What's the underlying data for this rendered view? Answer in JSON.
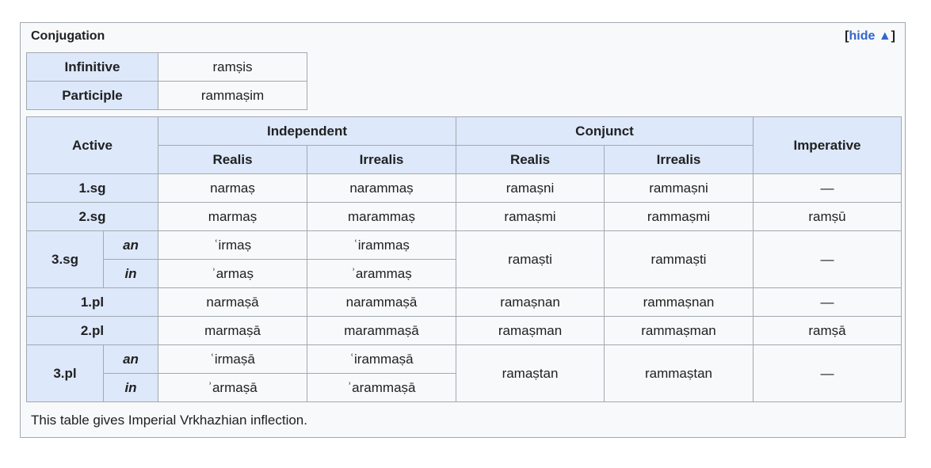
{
  "box": {
    "title": "Conjugation",
    "toggle_open": "[",
    "toggle_label": "hide ▲",
    "toggle_close": "]"
  },
  "forms": [
    {
      "label": "Infinitive",
      "value": "ramṣis"
    },
    {
      "label": "Participle",
      "value": "rammaṣim"
    }
  ],
  "table": {
    "corner": "Active",
    "group_independent": "Independent",
    "group_conjunct": "Conjunct",
    "imperative": "Imperative",
    "realis": "Realis",
    "irrealis": "Irrealis",
    "rows": {
      "sg1": {
        "label": "1.sg",
        "ind_r": "narmaṣ",
        "ind_i": "narammaṣ",
        "con_r": "ramaṣni",
        "con_i": "rammaṣni",
        "imp": "—"
      },
      "sg2": {
        "label": "2.sg",
        "ind_r": "marmaṣ",
        "ind_i": "marammaṣ",
        "con_r": "ramaṣmi",
        "con_i": "rammaṣmi",
        "imp": "ramṣū"
      },
      "sg3": {
        "label": "3.sg",
        "an": "an",
        "in": "in",
        "an_r": "ʿirmaṣ",
        "an_i": "ʿirammaṣ",
        "in_r": "ʾarmaṣ",
        "in_i": "ʾarammaṣ",
        "con_r": "ramaṣti",
        "con_i": "rammaṣti",
        "imp": "—"
      },
      "pl1": {
        "label": "1.pl",
        "ind_r": "narmaṣā",
        "ind_i": "narammaṣā",
        "con_r": "ramaṣnan",
        "con_i": "rammaṣnan",
        "imp": "—"
      },
      "pl2": {
        "label": "2.pl",
        "ind_r": "marmaṣā",
        "ind_i": "marammaṣā",
        "con_r": "ramaṣman",
        "con_i": "rammaṣman",
        "imp": "ramṣā"
      },
      "pl3": {
        "label": "3.pl",
        "an": "an",
        "in": "in",
        "an_r": "ʿirmaṣā",
        "an_i": "ʿirammaṣā",
        "in_r": "ʾarmaṣā",
        "in_i": "ʾarammaṣā",
        "con_r": "ramaṣtan",
        "con_i": "rammaṣtan",
        "imp": "—"
      }
    }
  },
  "footnote": "This table gives Imperial Vrkhazhian inflection."
}
